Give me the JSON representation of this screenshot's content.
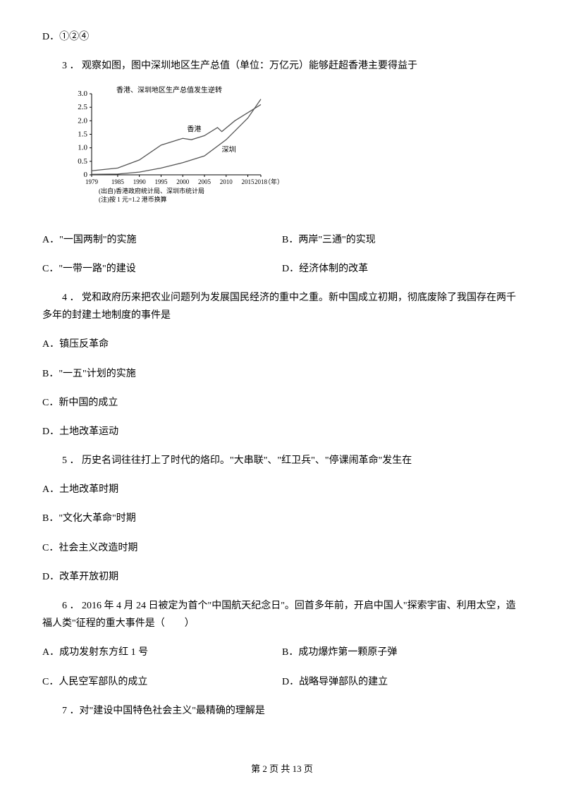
{
  "q2_optD": "D．①②④",
  "q3": {
    "text": "3 ． 观察如图，图中深圳地区生产总值（单位：万亿元）能够赶超香港主要得益于",
    "optA": "A．\"一国两制\"的实施",
    "optB": "B．两岸\"三通\"的实现",
    "optC": "C．\"一带一路\"的建设",
    "optD": "D．经济体制的改革"
  },
  "chart": {
    "title": "香港、深圳地区生产总值发生逆转",
    "ylim": [
      0,
      3.0
    ],
    "yticks": [
      "0",
      "0.5",
      "1.0",
      "1.5",
      "2.0",
      "2.5",
      "3.0"
    ],
    "xticks": [
      "1979",
      "1985",
      "1990",
      "1995",
      "2000",
      "2005",
      "2010",
      "2015",
      "2018"
    ],
    "xlabel_suffix": "（年）",
    "source": "(出自)香港政府统计局、深圳市统计局",
    "note": "(注)按 1 元=1.2 港币换算",
    "label_hk": "香港",
    "label_sz": "深圳",
    "hk_series": [
      {
        "x": 1979,
        "y": 0.15
      },
      {
        "x": 1985,
        "y": 0.25
      },
      {
        "x": 1990,
        "y": 0.55
      },
      {
        "x": 1995,
        "y": 1.1
      },
      {
        "x": 2000,
        "y": 1.35
      },
      {
        "x": 2002,
        "y": 1.3
      },
      {
        "x": 2005,
        "y": 1.45
      },
      {
        "x": 2008,
        "y": 1.75
      },
      {
        "x": 2009,
        "y": 1.6
      },
      {
        "x": 2012,
        "y": 2.0
      },
      {
        "x": 2015,
        "y": 2.3
      },
      {
        "x": 2017,
        "y": 2.5
      },
      {
        "x": 2018,
        "y": 2.6
      }
    ],
    "sz_series": [
      {
        "x": 1979,
        "y": 0.02
      },
      {
        "x": 1985,
        "y": 0.03
      },
      {
        "x": 1990,
        "y": 0.1
      },
      {
        "x": 1995,
        "y": 0.25
      },
      {
        "x": 2000,
        "y": 0.45
      },
      {
        "x": 2005,
        "y": 0.7
      },
      {
        "x": 2010,
        "y": 1.3
      },
      {
        "x": 2015,
        "y": 2.1
      },
      {
        "x": 2018,
        "y": 2.8
      }
    ],
    "line_color": "#555555",
    "axis_color": "#000000",
    "font_size": 11
  },
  "q4": {
    "text": "4 ． 党和政府历来把农业问题列为发展国民经济的重中之重。新中国成立初期，彻底废除了我国存在两千多年的封建土地制度的事件是",
    "optA": "A．镇压反革命",
    "optB": "B．\"一五\"计划的实施",
    "optC": "C．新中国的成立",
    "optD": "D．土地改革运动"
  },
  "q5": {
    "text": "5 ． 历史名词往往打上了时代的烙印。\"大串联\"、\"红卫兵\"、\"停课闹革命\"发生在",
    "optA": "A．土地改革时期",
    "optB": "B．\"文化大革命\"时期",
    "optC": "C．社会主义改造时期",
    "optD": "D．改革开放初期"
  },
  "q6": {
    "text": "6 ． 2016 年 4 月 24 日被定为首个\"中国航天纪念日\"。回首多年前，开启中国人\"探索宇宙、利用太空，造福人类\"征程的重大事件是（　　）",
    "optA": "A．成功发射东方红 1 号",
    "optB": "B．成功爆炸第一颗原子弹",
    "optC": "C．人民空军部队的成立",
    "optD": "D．战略导弹部队的建立"
  },
  "q7": {
    "text": "7 ．对\"建设中国特色社会主义\"最精确的理解是"
  },
  "footer": "第 2 页 共 13 页"
}
